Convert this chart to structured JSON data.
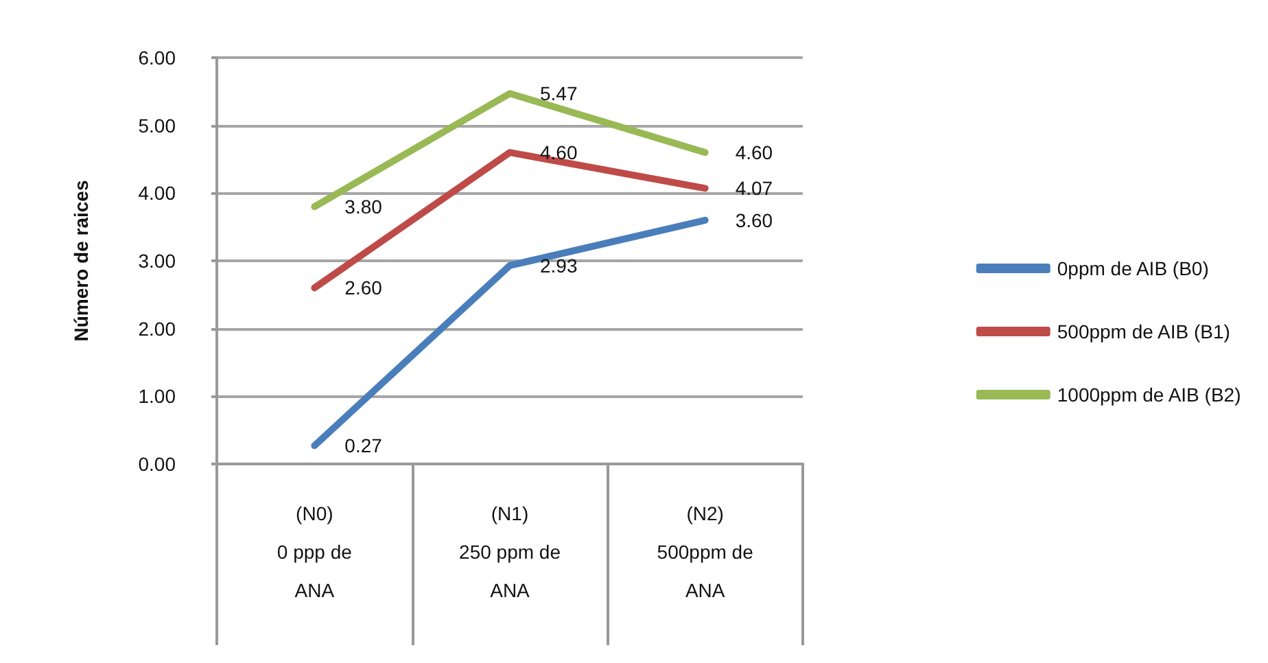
{
  "chart_data": {
    "type": "line",
    "categories": [
      "(N0)\n0 ppp de\nANA",
      "(N1)\n250 ppm de\nANA",
      "(N2)\n500ppm de\nANA"
    ],
    "ylabel": "Número de raices",
    "ylim": [
      0,
      6
    ],
    "yticks": [
      {
        "value": 0,
        "label": "0.00"
      },
      {
        "value": 1,
        "label": "1.00"
      },
      {
        "value": 2,
        "label": "2.00"
      },
      {
        "value": 3,
        "label": "3.00"
      },
      {
        "value": 4,
        "label": "4.00"
      },
      {
        "value": 5,
        "label": "5.00"
      },
      {
        "value": 6,
        "label": "6.00"
      }
    ],
    "grid": "y",
    "legend": "right",
    "marker": "none",
    "line_style": "solid",
    "series": [
      {
        "name": "0ppm de AIB (B0)",
        "color": "#4a7ebb",
        "values": [
          0.27,
          2.93,
          3.6
        ],
        "value_labels": [
          "0.27",
          "2.93",
          "3.60"
        ]
      },
      {
        "name": "500ppm de AIB (B1)",
        "color": "#be4b48",
        "values": [
          2.6,
          4.6,
          4.07
        ],
        "value_labels": [
          "2.60",
          "4.60",
          "4.07"
        ]
      },
      {
        "name": "1000ppm de AIB (B2)",
        "color": "#98b954",
        "values": [
          3.8,
          5.47,
          4.6
        ],
        "value_labels": [
          "3.80",
          "5.47",
          "4.60"
        ]
      }
    ]
  }
}
